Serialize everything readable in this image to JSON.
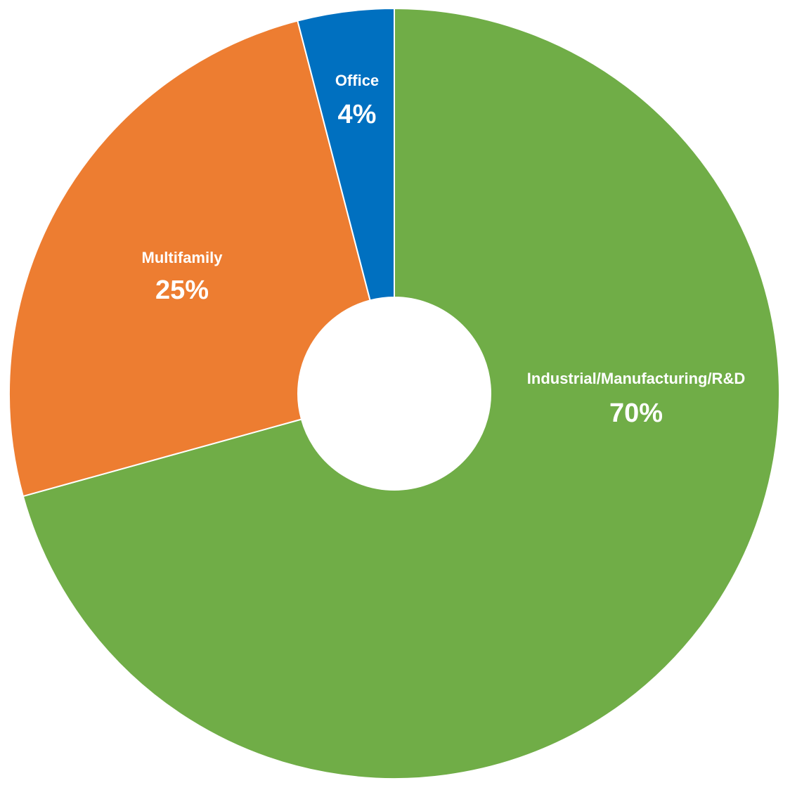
{
  "chart_data": {
    "type": "donut",
    "categories": [
      "Industrial/Manufacturing/R&D",
      "Multifamily",
      "Office"
    ],
    "values": [
      70,
      25,
      4
    ],
    "value_labels": [
      "70%",
      "25%",
      "4%"
    ],
    "colors": [
      "#70ad47",
      "#ed7d31",
      "#0070c0"
    ]
  }
}
